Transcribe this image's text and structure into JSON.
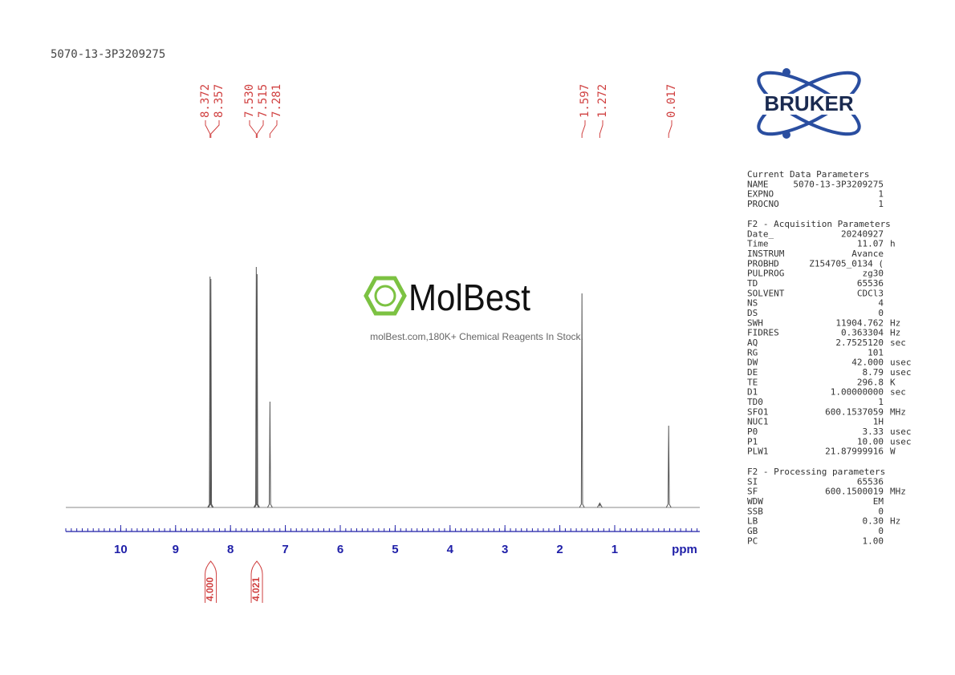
{
  "chart_data": {
    "type": "spectrum",
    "title": "5070-13-3P3209275",
    "x": [
      8.372,
      8.357,
      7.53,
      7.515,
      7.281,
      1.597,
      1.272,
      0.017
    ],
    "x_labels": [
      "8.372",
      "8.357",
      "7.530",
      "7.515",
      "7.281",
      "1.597",
      "1.272",
      "0.017"
    ],
    "values": [
      96,
      95,
      100,
      97,
      44,
      89,
      2,
      34
    ],
    "color": "#555555",
    "label_color": "#d04040",
    "axis_color": "#1f1fa8",
    "xlim": [
      11,
      -0.55
    ],
    "ylim": [
      0,
      100
    ],
    "xticks": [
      10,
      9,
      8,
      7,
      6,
      5,
      4,
      3,
      2,
      1
    ],
    "xlabel": "ppm",
    "integrals": {
      "x": [
        8.36,
        7.52
      ],
      "values": [
        4.0,
        4.021
      ],
      "value_labels": [
        "4.000",
        "4.021"
      ]
    }
  },
  "logo": "BRUKER",
  "watermark": {
    "name": "MolBest",
    "tagline": "molBest.com,180K+ Chemical Reagents In Stock."
  },
  "parameters": [
    {
      "title": "Current Data Parameters",
      "rows": [
        [
          "NAME",
          "5070-13-3P3209275"
        ],
        [
          "EXPNO",
          "1"
        ],
        [
          "PROCNO",
          "1"
        ]
      ]
    },
    {
      "title": "F2 - Acquisition Parameters",
      "rows": [
        [
          "Date_",
          "20240927"
        ],
        [
          "Time",
          "11.07",
          "h"
        ],
        [
          "INSTRUM",
          "Avance"
        ],
        [
          "PROBHD",
          "Z154705_0134 ("
        ],
        [
          "PULPROG",
          "zg30"
        ],
        [
          "TD",
          "65536"
        ],
        [
          "SOLVENT",
          "CDCl3"
        ],
        [
          "NS",
          "4"
        ],
        [
          "DS",
          "0"
        ],
        [
          "SWH",
          "11904.762",
          "Hz"
        ],
        [
          "FIDRES",
          "0.363304",
          "Hz"
        ],
        [
          "AQ",
          "2.7525120",
          "sec"
        ],
        [
          "RG",
          "101"
        ],
        [
          "DW",
          "42.000",
          "usec"
        ],
        [
          "DE",
          "8.79",
          "usec"
        ],
        [
          "TE",
          "296.8",
          "K"
        ],
        [
          "D1",
          "1.00000000",
          "sec"
        ],
        [
          "TD0",
          "1"
        ],
        [
          "SFO1",
          "600.1537059",
          "MHz"
        ],
        [
          "NUC1",
          "1H"
        ],
        [
          "P0",
          "3.33",
          "usec"
        ],
        [
          "P1",
          "10.00",
          "usec"
        ],
        [
          "PLW1",
          "21.87999916",
          "W"
        ]
      ]
    },
    {
      "title": "F2 - Processing parameters",
      "rows": [
        [
          "SI",
          "65536"
        ],
        [
          "SF",
          "600.1500019",
          "MHz"
        ],
        [
          "WDW",
          "EM"
        ],
        [
          "SSB",
          "0"
        ],
        [
          "LB",
          "0.30",
          "Hz"
        ],
        [
          "GB",
          "0"
        ],
        [
          "PC",
          "1.00"
        ]
      ]
    }
  ]
}
